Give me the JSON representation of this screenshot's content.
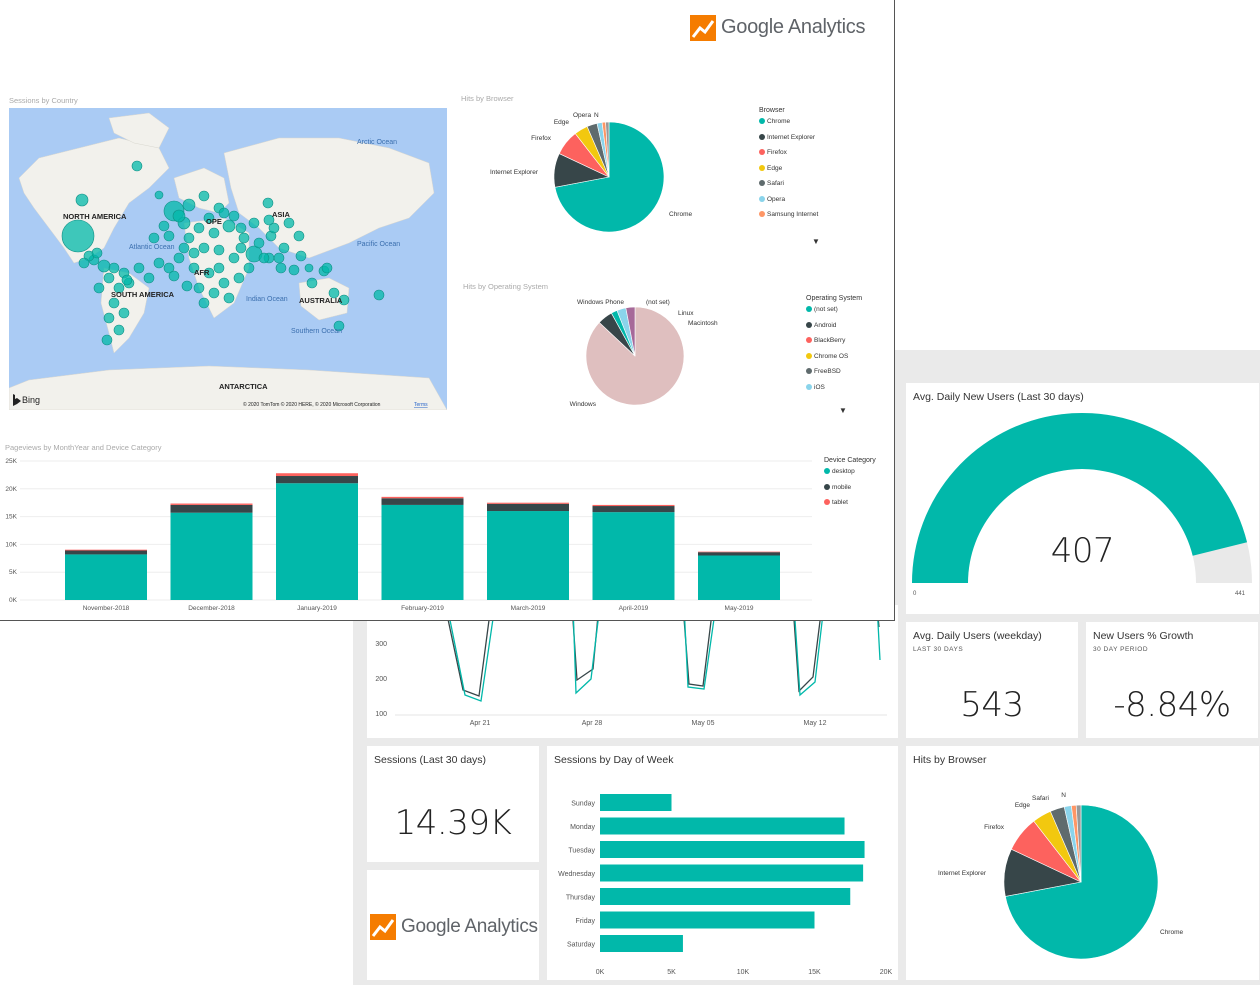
{
  "colors": {
    "teal": "#01B8AA",
    "dark": "#374649",
    "red": "#FD625E",
    "yellow": "#F2C80F",
    "grey": "#5F6B6D",
    "lightblue": "#8AD4EB",
    "orange": "#FE9666",
    "pink_gray": "#DFBFBF",
    "purple": "#A66999",
    "ocean": "#AACBF4",
    "land": "#F2F1EC"
  },
  "top_panel": {
    "logo": {
      "brand": "Google Analytics"
    },
    "map": {
      "title": "Sessions by Country",
      "labels": [
        "NORTH AMERICA",
        "SOUTH AMERICA",
        "ASIA",
        "OPE",
        "AFR",
        "AUSTRALIA",
        "ANTARCTICA"
      ],
      "ocean_labels": [
        "Arctic Ocean",
        "Atlantic Ocean",
        "Pacific Ocean",
        "Indian Ocean",
        "Southern Ocean"
      ],
      "bing": "Bing",
      "attribution": "© 2020 TomTom © 2020 HERE, © 2020 Microsoft Corporation",
      "terms": "Terms"
    },
    "browser_pie": {
      "title": "Hits by Browser",
      "legend_title": "Browser",
      "legend": [
        "Chrome",
        "Internet Explorer",
        "Firefox",
        "Edge",
        "Safari",
        "Opera",
        "Samsung Internet"
      ],
      "slice_labels": [
        "Chrome",
        "Internet Explorer",
        "Firefox",
        "Edge",
        "Opera",
        "N"
      ]
    },
    "os_pie": {
      "title": "Hits by Operating System",
      "legend_title": "Operating System",
      "legend": [
        "(not set)",
        "Android",
        "BlackBerry",
        "Chrome OS",
        "FreeBSD",
        "iOS"
      ],
      "slice_labels": [
        "Windows Phone",
        "(not set)",
        "Linux",
        "Macintosh",
        "Windows"
      ]
    },
    "pageviews": {
      "title": "Pageviews by MonthYear and Device Category",
      "legend_title": "Device Category",
      "legend": [
        "desktop",
        "mobile",
        "tablet"
      ]
    }
  },
  "daily_new_users": {
    "title": "Avg. Daily New Users (Last 30 days)",
    "value": "407",
    "min": "0",
    "max": "441",
    "fraction": 0.923
  },
  "daily_users": {
    "title": "Avg. Daily Users (weekday)",
    "subtitle": "LAST 30 DAYS",
    "value": "543"
  },
  "new_users_growth": {
    "title": "New Users % Growth",
    "subtitle": "30 DAY PERIOD",
    "value": "-8.84%"
  },
  "sessions_30": {
    "title": "Sessions (Last 30 days)",
    "value": "14.39K"
  },
  "sessions_dow": {
    "title": "Sessions by Day of Week"
  },
  "hits_browser_bottom": {
    "title": "Hits by Browser",
    "slice_labels": [
      "Chrome",
      "Internet Explorer",
      "Firefox",
      "Edge",
      "Safari",
      "N"
    ]
  },
  "ga_logo_bottom": {
    "brand": "Google Analytics"
  },
  "line_chart": {
    "y_ticks": [
      "300",
      "200",
      "100"
    ],
    "x_ticks": [
      "Apr 21",
      "Apr 28",
      "May 05",
      "May 12"
    ]
  },
  "chart_data": [
    {
      "type": "bar",
      "title": "Pageviews by MonthYear and Device Category",
      "categories": [
        "November-2018",
        "December-2018",
        "January-2019",
        "February-2019",
        "March-2019",
        "April-2019",
        "May-2019"
      ],
      "series": [
        {
          "name": "desktop",
          "values": [
            8200,
            15700,
            21000,
            17100,
            16000,
            15800,
            8000
          ]
        },
        {
          "name": "mobile",
          "values": [
            700,
            1400,
            1300,
            1200,
            1300,
            1100,
            600
          ]
        },
        {
          "name": "tablet",
          "values": [
            150,
            250,
            500,
            250,
            200,
            200,
            100
          ]
        }
      ],
      "y_ticks": [
        "25K",
        "20K",
        "15K",
        "10K",
        "5K",
        "0K"
      ],
      "ylim": [
        0,
        25000
      ]
    },
    {
      "type": "bar",
      "orientation": "horizontal",
      "title": "Sessions by Day of Week",
      "categories": [
        "Sunday",
        "Monday",
        "Tuesday",
        "Wednesday",
        "Thursday",
        "Friday",
        "Saturday"
      ],
      "values": [
        5000,
        17100,
        18500,
        18400,
        17500,
        15000,
        5800
      ],
      "x_ticks": [
        "0K",
        "5K",
        "10K",
        "15K",
        "20K"
      ],
      "xlim": [
        0,
        20000
      ]
    },
    {
      "type": "pie",
      "title": "Hits by Browser",
      "categories": [
        "Chrome",
        "Internet Explorer",
        "Firefox",
        "Edge",
        "Safari",
        "Opera",
        "Samsung Internet",
        "N"
      ],
      "values": [
        72,
        10,
        7.5,
        4,
        3,
        1.5,
        1,
        1
      ]
    },
    {
      "type": "pie",
      "title": "Hits by Operating System",
      "categories": [
        "Windows",
        "Windows Phone",
        "(not set)",
        "Linux",
        "Macintosh"
      ],
      "values": [
        87,
        5,
        2,
        3,
        3
      ]
    },
    {
      "type": "line",
      "x": [
        "Apr 21",
        "Apr 28",
        "May 05",
        "May 12"
      ],
      "ylim": [
        100,
        300
      ]
    }
  ]
}
